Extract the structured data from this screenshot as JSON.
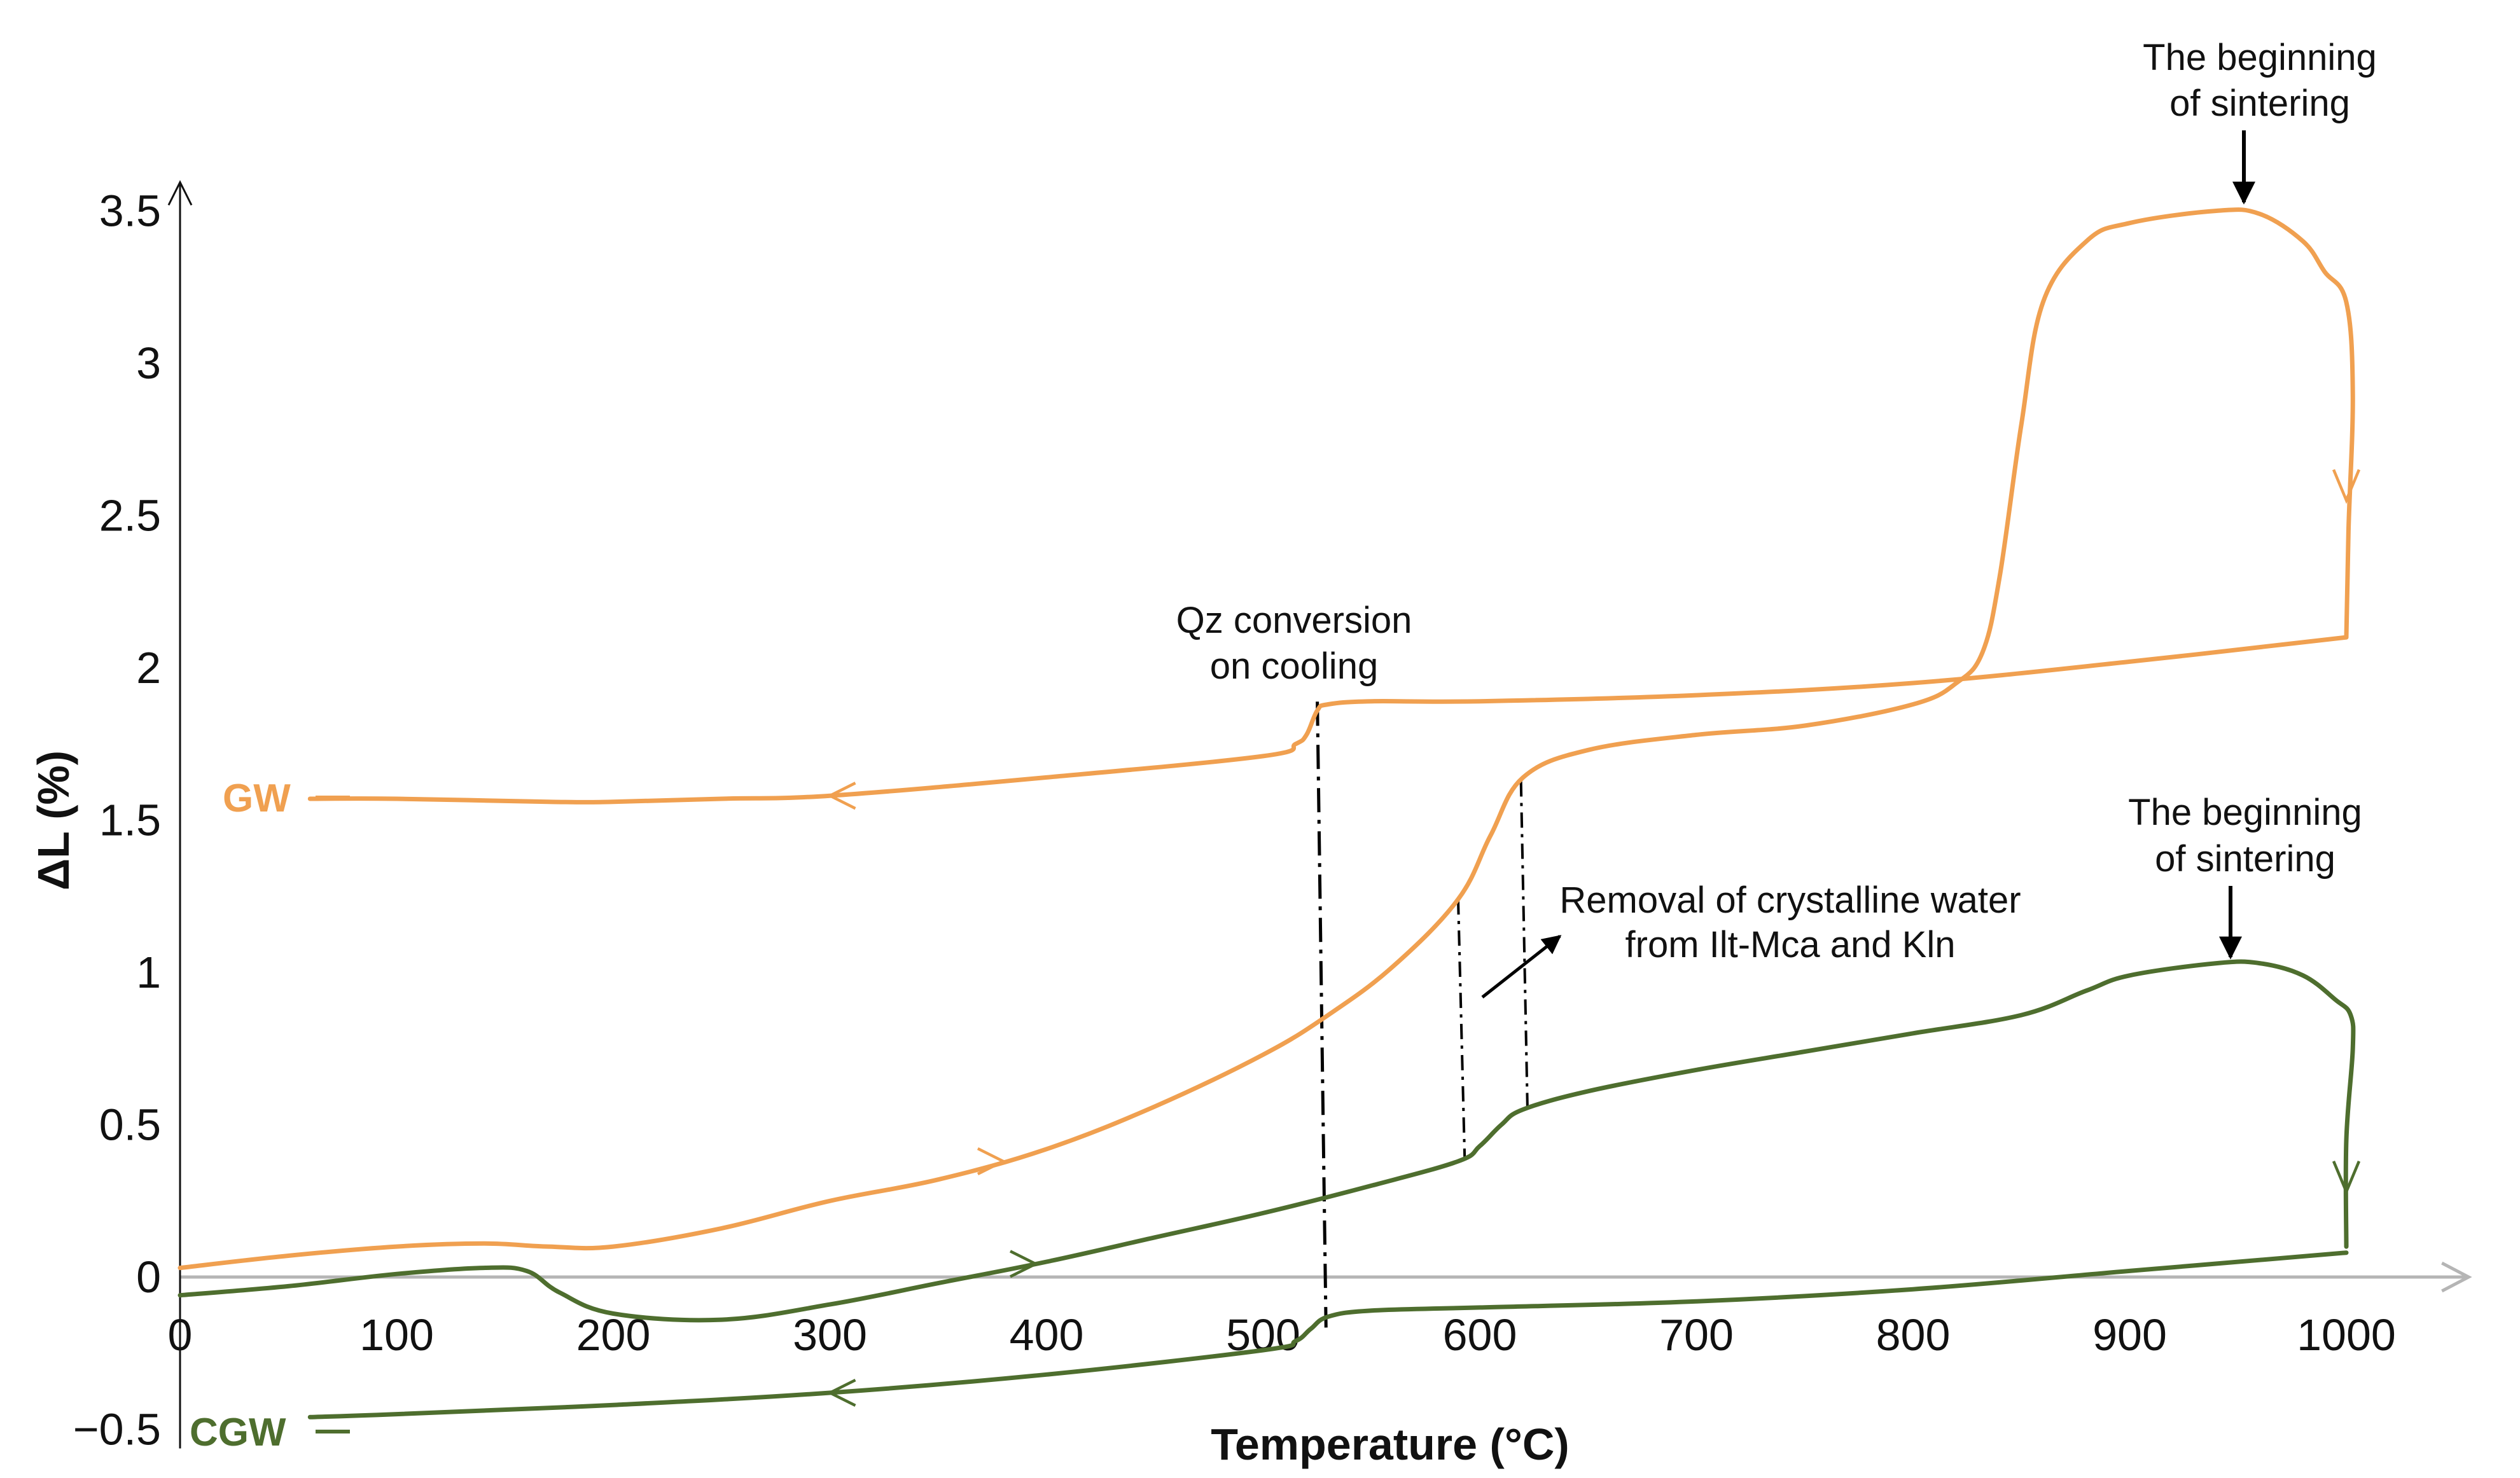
{
  "chart_data": {
    "type": "line",
    "title": "",
    "xlabel": "Temperature (°C)",
    "ylabel": "ΔL (%)",
    "xlim": [
      0,
      1050
    ],
    "ylim": [
      -0.5,
      3.5
    ],
    "x_ticks": [
      0,
      100,
      200,
      300,
      400,
      500,
      600,
      700,
      800,
      900,
      1000
    ],
    "x_tick_labels": [
      "0",
      "100",
      "200",
      "300",
      "400",
      "500",
      "600",
      "700",
      "800",
      "900",
      "1000"
    ],
    "y_ticks": [
      -0.5,
      0,
      0.5,
      1,
      1.5,
      2,
      2.5,
      3,
      3.5
    ],
    "y_tick_labels": [
      "−0.5",
      "0",
      "0.5",
      "1",
      "1.5",
      "2",
      "2.5",
      "3",
      "3.5"
    ],
    "grid": false,
    "series": [
      {
        "name": "GW",
        "color": "#F0A050",
        "heating": {
          "x": [
            0,
            50,
            100,
            140,
            170,
            200,
            250,
            300,
            350,
            400,
            450,
            500,
            530,
            560,
            590,
            605,
            620,
            650,
            700,
            750,
            800,
            820,
            832,
            840,
            850,
            860,
            880,
            900,
            940,
            960,
            980,
            990,
            1000,
            1003,
            1001,
            1000
          ],
          "y": [
            0.03,
            0.07,
            0.1,
            0.11,
            0.1,
            0.1,
            0.16,
            0.25,
            0.32,
            0.42,
            0.56,
            0.73,
            0.86,
            1.02,
            1.24,
            1.45,
            1.64,
            1.73,
            1.78,
            1.81,
            1.88,
            1.95,
            2.05,
            2.3,
            2.8,
            3.2,
            3.4,
            3.46,
            3.5,
            3.49,
            3.4,
            3.3,
            3.2,
            2.9,
            2.45,
            2.1
          ]
        },
        "cooling": {
          "x": [
            1000,
            900,
            800,
            700,
            600,
            550,
            530,
            525,
            520,
            515,
            500,
            400,
            300,
            250,
            200,
            170,
            100,
            60
          ],
          "y": [
            2.1,
            2.02,
            1.95,
            1.91,
            1.89,
            1.89,
            1.88,
            1.86,
            1.78,
            1.75,
            1.71,
            1.64,
            1.58,
            1.57,
            1.56,
            1.56,
            1.57,
            1.57
          ]
        }
      },
      {
        "name": "CGW",
        "color": "#4E6E2E",
        "heating": {
          "x": [
            0,
            50,
            100,
            140,
            160,
            175,
            200,
            250,
            300,
            350,
            400,
            450,
            500,
            550,
            590,
            600,
            610,
            620,
            650,
            700,
            750,
            800,
            850,
            880,
            900,
            940,
            960,
            980,
            995,
            1002,
            1003,
            1000,
            1000
          ],
          "y": [
            -0.06,
            -0.03,
            0.01,
            0.03,
            0.02,
            -0.05,
            -0.12,
            -0.14,
            -0.09,
            -0.02,
            0.05,
            0.13,
            0.21,
            0.3,
            0.38,
            0.43,
            0.5,
            0.55,
            0.61,
            0.68,
            0.74,
            0.8,
            0.86,
            0.94,
            0.99,
            1.03,
            1.03,
            0.99,
            0.91,
            0.86,
            0.75,
            0.45,
            0.1
          ]
        },
        "cooling": {
          "x": [
            1000,
            900,
            800,
            700,
            600,
            550,
            530,
            522,
            515,
            500,
            400,
            300,
            200,
            100,
            60
          ],
          "y": [
            0.08,
            0.02,
            -0.04,
            -0.08,
            -0.1,
            -0.11,
            -0.13,
            -0.17,
            -0.21,
            -0.24,
            -0.32,
            -0.38,
            -0.42,
            -0.45,
            -0.46
          ]
        }
      }
    ],
    "annotations": [
      {
        "id": "sintering_gw",
        "lines": [
          "The beginning",
          "of sintering"
        ],
        "target": [
          955,
          3.5
        ]
      },
      {
        "id": "qz_conversion",
        "lines": [
          "Qz conversion",
          "on cooling"
        ],
        "x": 527
      },
      {
        "id": "sintering_cgw",
        "lines": [
          "The beginning",
          "of sintering"
        ],
        "target": [
          947,
          1.03
        ]
      },
      {
        "id": "crystalline_water",
        "lines": [
          "Removal of crystalline water",
          "from Ilt-Mca and Kln"
        ],
        "x_range": [
          593,
          622
        ]
      }
    ]
  }
}
